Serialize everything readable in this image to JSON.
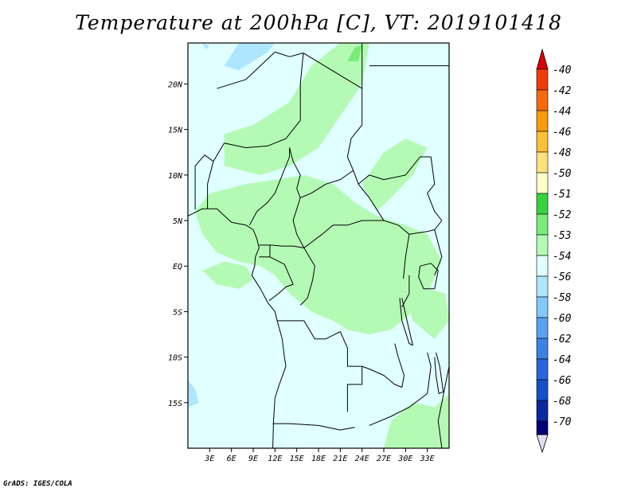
{
  "title": "Temperature at 200hPa [C], VT: 2019101418",
  "credit": "GrADS: IGES/COLA",
  "map": {
    "lon_range": [
      0,
      36
    ],
    "lat_range": [
      -20,
      24.5
    ],
    "background_value": -55,
    "background_color": "#e0ffff",
    "lat_ticks": [
      {
        "value": 20,
        "label": "20N"
      },
      {
        "value": 15,
        "label": "15N"
      },
      {
        "value": 10,
        "label": "10N"
      },
      {
        "value": 5,
        "label": "5N"
      },
      {
        "value": 0,
        "label": "EQ"
      },
      {
        "value": -5,
        "label": "5S"
      },
      {
        "value": -10,
        "label": "10S"
      },
      {
        "value": -15,
        "label": "15S"
      }
    ],
    "lon_ticks": [
      {
        "value": 3,
        "label": "3E"
      },
      {
        "value": 6,
        "label": "6E"
      },
      {
        "value": 9,
        "label": "9E"
      },
      {
        "value": 12,
        "label": "12E"
      },
      {
        "value": 15,
        "label": "15E"
      },
      {
        "value": 18,
        "label": "18E"
      },
      {
        "value": 21,
        "label": "21E"
      },
      {
        "value": 24,
        "label": "24E"
      },
      {
        "value": 27,
        "label": "27E"
      },
      {
        "value": 30,
        "label": "30E"
      },
      {
        "value": 33,
        "label": "33E"
      }
    ]
  },
  "colorbar": {
    "levels": [
      {
        "label": "-40",
        "color": "#f01010"
      },
      {
        "label": "-42",
        "color": "#f03c0a"
      },
      {
        "label": "-44",
        "color": "#f56a0a"
      },
      {
        "label": "-46",
        "color": "#f89a0a"
      },
      {
        "label": "-48",
        "color": "#fac037"
      },
      {
        "label": "-50",
        "color": "#fde17c"
      },
      {
        "label": "-51",
        "color": "#ffffc8"
      },
      {
        "label": "-52",
        "color": "#37d23c"
      },
      {
        "label": "-53",
        "color": "#78eb78"
      },
      {
        "label": "-54",
        "color": "#b4fab4"
      },
      {
        "label": "-56",
        "color": "#e0ffff"
      },
      {
        "label": "-58",
        "color": "#afe6ff"
      },
      {
        "label": "-60",
        "color": "#82c8fa"
      },
      {
        "label": "-62",
        "color": "#5aa0f0"
      },
      {
        "label": "-64",
        "color": "#3c82e6"
      },
      {
        "label": "-66",
        "color": "#2864dc"
      },
      {
        "label": "-68",
        "color": "#1450c8"
      },
      {
        "label": "-70",
        "color": "#0a28a0"
      }
    ],
    "top_triangle_color": "#dc0000",
    "bottom_triangle_color": "#e0dcf5",
    "bottom_cell_color": "#000078"
  },
  "field_regions": [
    {
      "name": "green-band-north",
      "value": -54,
      "color": "#b4fab4",
      "lonlat": [
        [
          5,
          14.5
        ],
        [
          9,
          15.5
        ],
        [
          14,
          18
        ],
        [
          17,
          22
        ],
        [
          21,
          24.5
        ],
        [
          25,
          24.5
        ],
        [
          24,
          20
        ],
        [
          21,
          16.5
        ],
        [
          18,
          13
        ],
        [
          14,
          11
        ],
        [
          10,
          10
        ],
        [
          5,
          11
        ]
      ]
    },
    {
      "name": "green-band-central",
      "value": -54,
      "color": "#b4fab4",
      "lonlat": [
        [
          3,
          8
        ],
        [
          8,
          9
        ],
        [
          12,
          9.5
        ],
        [
          16,
          10
        ],
        [
          20,
          9
        ],
        [
          23,
          7
        ],
        [
          26,
          5.5
        ],
        [
          30,
          4.5
        ],
        [
          33,
          3.5
        ],
        [
          35,
          0.5
        ],
        [
          33,
          -3
        ],
        [
          31,
          -5
        ],
        [
          28,
          -7
        ],
        [
          25,
          -7.5
        ],
        [
          22,
          -7
        ],
        [
          20,
          -6
        ],
        [
          17,
          -5
        ],
        [
          14,
          -3
        ],
        [
          12,
          -1
        ],
        [
          10,
          0
        ],
        [
          7,
          0.5
        ],
        [
          4,
          1.5
        ],
        [
          2,
          3.5
        ],
        [
          1,
          6
        ]
      ]
    },
    {
      "name": "green-east-lobe",
      "value": -54,
      "color": "#b4fab4",
      "lonlat": [
        [
          24,
          9
        ],
        [
          27,
          12.5
        ],
        [
          30,
          14
        ],
        [
          33,
          13
        ],
        [
          31,
          10
        ],
        [
          28,
          7.5
        ],
        [
          26,
          6
        ]
      ]
    },
    {
      "name": "green-gabon-blob",
      "value": -54,
      "color": "#b4fab4",
      "lonlat": [
        [
          2,
          -0.5
        ],
        [
          5,
          0.5
        ],
        [
          8,
          0
        ],
        [
          9,
          -1.5
        ],
        [
          7,
          -2.5
        ],
        [
          4,
          -2
        ]
      ]
    },
    {
      "name": "green-southeast",
      "value": -54,
      "color": "#b4fab4",
      "lonlat": [
        [
          30,
          -3
        ],
        [
          33,
          -2.5
        ],
        [
          35.5,
          -3
        ],
        [
          36,
          -6
        ],
        [
          34,
          -8
        ],
        [
          31,
          -6
        ]
      ]
    },
    {
      "name": "green-south-corner",
      "value": -54,
      "color": "#b4fab4",
      "lonlat": [
        [
          27,
          -20
        ],
        [
          28,
          -17
        ],
        [
          31,
          -15
        ],
        [
          34,
          -15.5
        ],
        [
          36,
          -14
        ],
        [
          36,
          -20
        ]
      ]
    },
    {
      "name": "darkgreen-sahara",
      "value": -53,
      "color": "#78eb78",
      "lonlat": [
        [
          22,
          22.5
        ],
        [
          23,
          24
        ],
        [
          24,
          24.3
        ],
        [
          23.5,
          22.5
        ]
      ]
    },
    {
      "name": "blue-north-africa",
      "value": -56,
      "color": "#afe6ff",
      "lonlat": [
        [
          5,
          22
        ],
        [
          7,
          24.5
        ],
        [
          12,
          24.5
        ],
        [
          11,
          23.5
        ],
        [
          9,
          22.5
        ],
        [
          7,
          21.5
        ]
      ]
    },
    {
      "name": "blue-north-edge",
      "value": -56,
      "color": "#afe6ff",
      "lonlat": [
        [
          2,
          24.5
        ],
        [
          3,
          24.2
        ],
        [
          2.5,
          23.8
        ]
      ]
    },
    {
      "name": "blue-southwest",
      "value": -56,
      "color": "#afe6ff",
      "lonlat": [
        [
          0,
          -12.5
        ],
        [
          1,
          -13.5
        ],
        [
          1.5,
          -15
        ],
        [
          0,
          -15.5
        ]
      ]
    }
  ],
  "borders": [
    {
      "name": "coast-west-africa",
      "lonlat": [
        [
          0,
          5.5
        ],
        [
          2,
          6.3
        ],
        [
          4,
          6.3
        ],
        [
          6,
          4.8
        ],
        [
          8,
          4.5
        ],
        [
          9,
          4
        ],
        [
          9.5,
          3
        ],
        [
          9.8,
          2
        ],
        [
          9.3,
          1
        ],
        [
          9.2,
          0
        ],
        [
          8.8,
          -1
        ],
        [
          10,
          -2.5
        ],
        [
          11,
          -4
        ],
        [
          12,
          -5
        ],
        [
          12.3,
          -6
        ],
        [
          13,
          -8
        ],
        [
          13.3,
          -10
        ],
        [
          13.5,
          -11
        ],
        [
          12.6,
          -13
        ],
        [
          12,
          -14.5
        ],
        [
          11.8,
          -17
        ],
        [
          11.7,
          -20
        ]
      ]
    },
    {
      "name": "coast-east-africa",
      "lonlat": [
        [
          36,
          -11
        ],
        [
          35.5,
          -13
        ],
        [
          35,
          -15
        ],
        [
          34.5,
          -17
        ],
        [
          35,
          -20
        ]
      ]
    },
    {
      "name": "lake-victoria",
      "lonlat": [
        [
          32,
          0
        ],
        [
          33.5,
          0.3
        ],
        [
          34.5,
          -0.5
        ],
        [
          34,
          -2.5
        ],
        [
          32.5,
          -2.5
        ],
        [
          31.8,
          -1.2
        ],
        [
          32,
          0
        ]
      ]
    },
    {
      "name": "lake-tanganyika",
      "lonlat": [
        [
          29.2,
          -3.5
        ],
        [
          29.5,
          -6
        ],
        [
          30.5,
          -8.5
        ],
        [
          31,
          -8.7
        ],
        [
          30.2,
          -6
        ],
        [
          29.5,
          -3.5
        ]
      ]
    },
    {
      "name": "lake-malawi",
      "lonlat": [
        [
          34.2,
          -9.5
        ],
        [
          34.7,
          -11
        ],
        [
          35.2,
          -13.8
        ],
        [
          34.6,
          -14
        ],
        [
          34.2,
          -12
        ],
        [
          34,
          -10
        ]
      ]
    },
    {
      "name": "niger-algeria",
      "lonlat": [
        [
          4,
          19.5
        ],
        [
          8,
          20.5
        ],
        [
          12,
          23.5
        ]
      ]
    },
    {
      "name": "libya-niger",
      "lonlat": [
        [
          12,
          23.5
        ],
        [
          14,
          23
        ],
        [
          15.9,
          23.4
        ]
      ]
    },
    {
      "name": "libya-chad",
      "lonlat": [
        [
          15.9,
          23.4
        ],
        [
          24,
          19.5
        ]
      ]
    },
    {
      "name": "sudan-libya",
      "lonlat": [
        [
          24,
          19.5
        ],
        [
          24,
          24.5
        ]
      ]
    },
    {
      "name": "egypt-sudan",
      "lonlat": [
        [
          25,
          22
        ],
        [
          36,
          22
        ]
      ]
    },
    {
      "name": "chad-sudan",
      "lonlat": [
        [
          24,
          19.5
        ],
        [
          24,
          15.5
        ],
        [
          22.5,
          14
        ],
        [
          22,
          12
        ],
        [
          22.8,
          10.5
        ],
        [
          23.5,
          9
        ]
      ]
    },
    {
      "name": "niger-chad",
      "lonlat": [
        [
          15.9,
          23.4
        ],
        [
          15.5,
          20
        ],
        [
          15.5,
          16
        ],
        [
          13.5,
          14
        ]
      ]
    },
    {
      "name": "niger-nigeria",
      "lonlat": [
        [
          3.5,
          11.5
        ],
        [
          5,
          13.5
        ],
        [
          8,
          13
        ],
        [
          11,
          13.2
        ],
        [
          13.5,
          14
        ]
      ]
    },
    {
      "name": "benin-nigeria",
      "lonlat": [
        [
          2.7,
          6.3
        ],
        [
          2.7,
          9
        ],
        [
          3.5,
          11.5
        ]
      ]
    },
    {
      "name": "benin-togo-burkina",
      "lonlat": [
        [
          1,
          6.2
        ],
        [
          1,
          11
        ],
        [
          2.3,
          12.2
        ],
        [
          3.5,
          11.5
        ]
      ]
    },
    {
      "name": "nigeria-cameroon",
      "lonlat": [
        [
          8.5,
          4.5
        ],
        [
          9.5,
          6
        ],
        [
          11,
          7
        ],
        [
          12,
          8
        ],
        [
          13,
          10
        ],
        [
          14,
          12
        ],
        [
          14,
          13
        ]
      ]
    },
    {
      "name": "chad-car",
      "lonlat": [
        [
          15.5,
          7.5
        ],
        [
          17,
          8
        ],
        [
          19,
          9
        ],
        [
          21,
          9.5
        ],
        [
          22.8,
          10.5
        ]
      ]
    },
    {
      "name": "cameroon-chad",
      "lonlat": [
        [
          14,
          13
        ],
        [
          14.5,
          11.5
        ],
        [
          15.5,
          10
        ],
        [
          15,
          8.5
        ],
        [
          15.5,
          7.5
        ]
      ]
    },
    {
      "name": "cameroon-car-congo",
      "lonlat": [
        [
          15.5,
          7.5
        ],
        [
          14.5,
          5
        ],
        [
          15,
          3.5
        ],
        [
          16,
          2
        ]
      ]
    },
    {
      "name": "car-drc",
      "lonlat": [
        [
          16,
          2
        ],
        [
          18.5,
          3.5
        ],
        [
          20,
          4.5
        ],
        [
          22,
          4.5
        ],
        [
          24,
          5
        ],
        [
          27,
          5
        ]
      ]
    },
    {
      "name": "car-south-sudan",
      "lonlat": [
        [
          23.5,
          9
        ],
        [
          24,
          8.5
        ],
        [
          25,
          7.5
        ],
        [
          27,
          5
        ]
      ]
    },
    {
      "name": "sudan-south-sudan",
      "lonlat": [
        [
          23.5,
          9
        ],
        [
          25,
          10
        ],
        [
          27,
          9.5
        ],
        [
          30,
          10
        ],
        [
          32,
          12
        ],
        [
          33.5,
          12
        ]
      ]
    },
    {
      "name": "south-sudan-ethiopia",
      "lonlat": [
        [
          33.5,
          12
        ],
        [
          34,
          9
        ],
        [
          33,
          8
        ],
        [
          34,
          6
        ],
        [
          35,
          5
        ]
      ]
    },
    {
      "name": "drc-uganda",
      "lonlat": [
        [
          27,
          5
        ],
        [
          29,
          4.5
        ],
        [
          30.5,
          3.5
        ],
        [
          30,
          1
        ],
        [
          29.7,
          -1.4
        ]
      ]
    },
    {
      "name": "uganda-kenya",
      "lonlat": [
        [
          34,
          4
        ],
        [
          35,
          1
        ],
        [
          34,
          -1
        ]
      ]
    },
    {
      "name": "south-sudan-uganda-kenya",
      "lonlat": [
        [
          30.5,
          3.5
        ],
        [
          33,
          3.8
        ],
        [
          34,
          4
        ],
        [
          35,
          5
        ]
      ]
    },
    {
      "name": "cameroon-gabon-eqg",
      "lonlat": [
        [
          9.8,
          2.3
        ],
        [
          11.5,
          2.3
        ],
        [
          13,
          2.2
        ],
        [
          14.5,
          2.2
        ],
        [
          16,
          2
        ]
      ]
    },
    {
      "name": "eqg-gabon",
      "lonlat": [
        [
          9.8,
          1
        ],
        [
          11.3,
          1
        ],
        [
          11.3,
          2.3
        ]
      ]
    },
    {
      "name": "gabon-congo",
      "lonlat": [
        [
          11.3,
          1
        ],
        [
          13.3,
          0.2
        ],
        [
          14.5,
          -2
        ],
        [
          13.5,
          -2.3
        ],
        [
          12.5,
          -3
        ],
        [
          11.2,
          -3.8
        ]
      ]
    },
    {
      "name": "congo-drc",
      "lonlat": [
        [
          16,
          2
        ],
        [
          17.5,
          0
        ],
        [
          17.2,
          -1.5
        ],
        [
          16.5,
          -3.5
        ],
        [
          15.5,
          -4.3
        ]
      ]
    },
    {
      "name": "drc-angola-north",
      "lonlat": [
        [
          12.3,
          -6
        ],
        [
          13.5,
          -6
        ],
        [
          16,
          -6
        ],
        [
          17.5,
          -8
        ],
        [
          19,
          -8
        ],
        [
          21,
          -7.2
        ],
        [
          22,
          -9
        ],
        [
          22,
          -11
        ],
        [
          24,
          -11
        ]
      ]
    },
    {
      "name": "drc-zambia",
      "lonlat": [
        [
          24,
          -11
        ],
        [
          25,
          -11.3
        ],
        [
          27,
          -12
        ],
        [
          28.5,
          -13
        ],
        [
          29.5,
          -13.3
        ],
        [
          29.8,
          -12
        ],
        [
          29,
          -10
        ],
        [
          28.5,
          -8.5
        ]
      ]
    },
    {
      "name": "angola-zambia",
      "lonlat": [
        [
          24,
          -11
        ],
        [
          24,
          -13
        ],
        [
          22,
          -13
        ],
        [
          22,
          -16
        ]
      ]
    },
    {
      "name": "angola-namibia",
      "lonlat": [
        [
          11.7,
          -17.3
        ],
        [
          14,
          -17.3
        ],
        [
          18,
          -17.5
        ],
        [
          21,
          -18
        ],
        [
          23,
          -17.7
        ]
      ]
    },
    {
      "name": "zambia-malawi-moz",
      "lonlat": [
        [
          33,
          -9.5
        ],
        [
          33.5,
          -11
        ],
        [
          33,
          -14
        ],
        [
          30.5,
          -15.5
        ],
        [
          28,
          -16.5
        ],
        [
          25,
          -17.5
        ]
      ]
    },
    {
      "name": "tanzania-west",
      "lonlat": [
        [
          30.5,
          -1
        ],
        [
          30.5,
          -3
        ],
        [
          29.5,
          -4.5
        ]
      ]
    }
  ]
}
